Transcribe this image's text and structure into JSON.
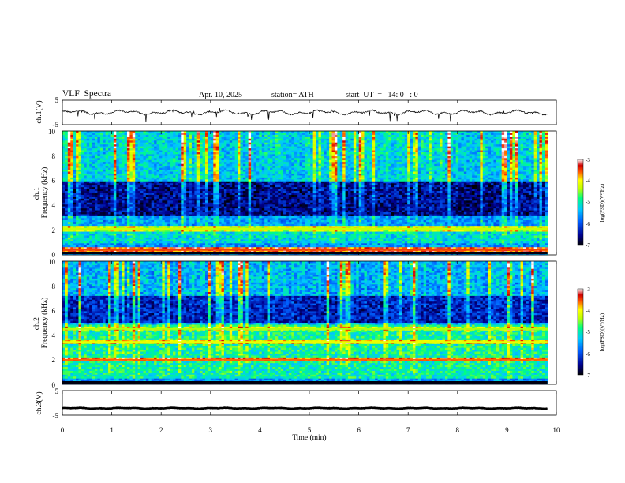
{
  "header": {
    "title": "VLF  Spectra",
    "date": "Apr. 10, 2025",
    "station": "station= ATH",
    "start": "start  UT  =   14: 0   : 0"
  },
  "chart_data": {
    "type": "heatmap",
    "xlabel": "Time  (min)",
    "xlim": [
      0,
      10
    ],
    "xticks": [
      "0",
      "1",
      "2",
      "3",
      "4",
      "5",
      "6",
      "7",
      "8",
      "9",
      "10"
    ],
    "panels": [
      {
        "id": "ch1-waveform",
        "type": "line",
        "ylabel": "ch.1(V)",
        "ylim": [
          -5,
          5
        ],
        "yticks": [
          "5",
          "-5"
        ],
        "trace_mean_v": 0,
        "trace_amplitude_v": 1.2,
        "data_end_min": 9.82
      },
      {
        "id": "ch1-spectrogram",
        "type": "heatmap",
        "ylabel": "ch.1\nFrequency  (kHz)",
        "ylim": [
          0,
          10
        ],
        "yticks": [
          "0",
          "2",
          "4",
          "6",
          "8",
          "10"
        ],
        "colorbar": {
          "label": "log(PSD)(V²/Hz)",
          "range": [
            -7,
            -3
          ],
          "ticks": [
            "-3",
            "-4",
            "-5",
            "-6",
            "-7"
          ]
        },
        "features": [
          {
            "name": "quiet band",
            "freq_khz": [
              3.2,
              6.0
            ],
            "log_psd": -6.6
          },
          {
            "name": "low band",
            "freq_khz": [
              1.0,
              2.4
            ],
            "log_psd": -5.2
          },
          {
            "name": "upper band",
            "freq_khz": [
              6.0,
              10.0
            ],
            "log_psd": -5.4
          },
          {
            "name": "bright line",
            "freq_khz": 2.1,
            "log_psd": -4.3
          },
          {
            "name": "bright line",
            "freq_khz": 0.4,
            "log_psd": -3.5
          }
        ],
        "data_end_min": 9.82
      },
      {
        "id": "ch2-spectrogram",
        "type": "heatmap",
        "ylabel": "ch.2\nFrequency  (kHz)",
        "ylim": [
          0,
          10
        ],
        "yticks": [
          "0",
          "2",
          "4",
          "6",
          "8",
          "10"
        ],
        "colorbar": {
          "label": "log(PSD)(V²/Hz)",
          "range": [
            -7,
            -3
          ],
          "ticks": [
            "-3",
            "-4",
            "-5",
            "-6",
            "-7"
          ]
        },
        "features": [
          {
            "name": "quiet band",
            "freq_khz": [
              5.0,
              7.2
            ],
            "log_psd": -6.4
          },
          {
            "name": "mid band",
            "freq_khz": [
              0.5,
              4.8
            ],
            "log_psd": -5.0
          },
          {
            "name": "strong line",
            "freq_khz": 2.0,
            "log_psd": -3.6
          },
          {
            "name": "strong line",
            "freq_khz": 3.45,
            "log_psd": -4.1
          },
          {
            "name": "line",
            "freq_khz": 4.5,
            "log_psd": -4.4
          }
        ],
        "data_end_min": 9.82
      },
      {
        "id": "ch3-waveform",
        "type": "line",
        "ylabel": "ch.3(V)",
        "ylim": [
          -5,
          5
        ],
        "yticks": [
          "5",
          "-5"
        ],
        "trace_mean_v": -2.2,
        "trace_amplitude_v": 0.25,
        "data_end_min": 9.82
      }
    ]
  }
}
